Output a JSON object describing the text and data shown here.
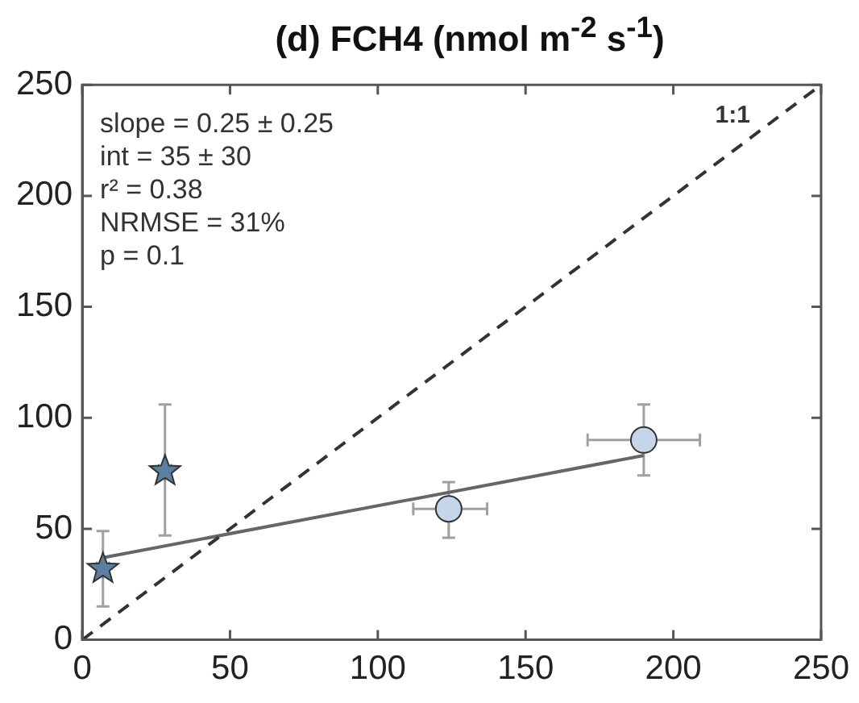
{
  "chart_data": {
    "type": "scatter",
    "title": "(d) FCH4 (nmol m$^{-2}$ s$^{-1}$)",
    "xlim": [
      0,
      250
    ],
    "xticks": [
      0,
      50,
      100,
      150,
      200,
      250
    ],
    "ylim": [
      0,
      250
    ],
    "yticks": [
      0,
      50,
      100,
      150,
      200,
      250
    ],
    "grid": false,
    "legend": false,
    "annotations": [
      "slope = 0.25 ± 0.25\nint = 35 ± 30\nr² = 0.38\nNRMSE = 31%\np = 0.1",
      "1:1"
    ],
    "series": [
      {
        "type": "line",
        "color": "#333333",
        "line_style": "dashed",
        "marker": "none",
        "x": [
          0,
          250
        ],
        "values": [
          0,
          250
        ]
      },
      {
        "type": "line",
        "color": "#666666",
        "line_style": "solid",
        "marker": "none",
        "x": [
          7,
          190
        ],
        "values": [
          37,
          83
        ]
      },
      {
        "type": "scatter",
        "color": "#5b7fa0",
        "marker": "star",
        "x": [
          7,
          28
        ],
        "values": [
          32,
          76
        ],
        "errors": [
          [
            15,
            49
          ],
          [
            47,
            106
          ]
        ],
        "xerrors": [
          null,
          null
        ]
      },
      {
        "type": "scatter",
        "color": "#c5d5ea",
        "marker": "circle",
        "x": [
          124,
          190
        ],
        "values": [
          59,
          90
        ],
        "errors": [
          [
            46,
            71
          ],
          [
            74,
            106
          ]
        ],
        "xerrors": [
          [
            112,
            137
          ],
          [
            171,
            209
          ]
        ]
      }
    ]
  }
}
